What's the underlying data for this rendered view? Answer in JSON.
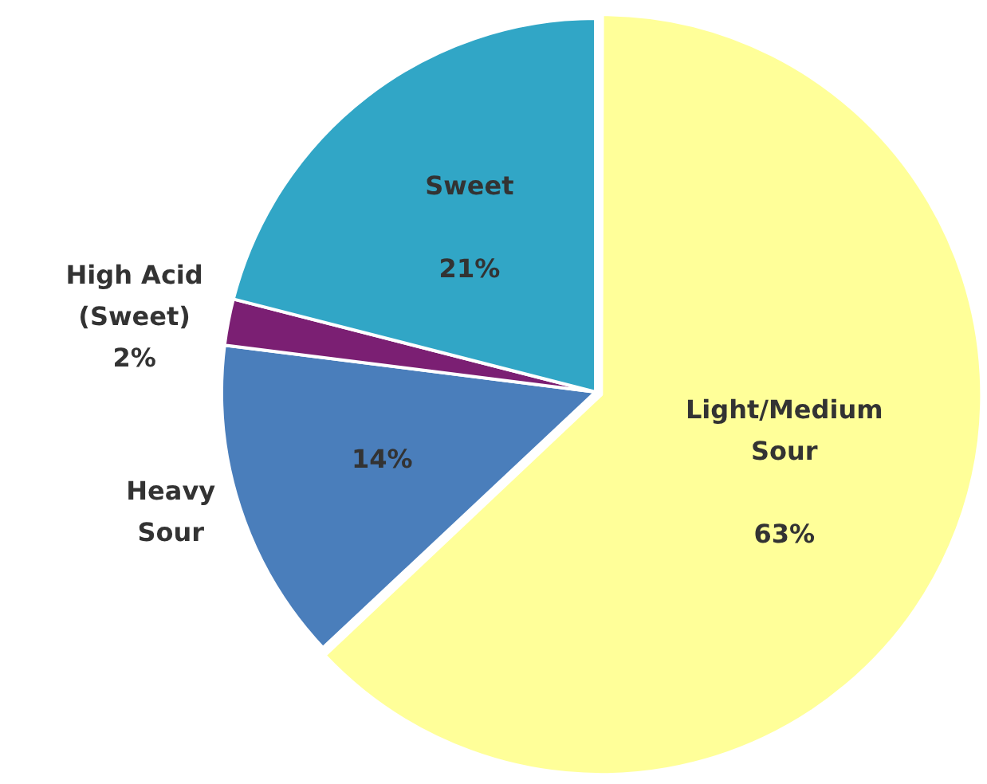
{
  "chart_data": {
    "type": "pie",
    "categories": [
      "Light/Medium Sour",
      "Heavy Sour",
      "High Acid (Sweet)",
      "Sweet"
    ],
    "values": [
      63,
      14,
      2,
      21
    ],
    "value_labels": [
      "63%",
      "14%",
      "2%",
      "21%"
    ],
    "colors": [
      "#ffff99",
      "#4a7ebb",
      "#7b1f73",
      "#31a6c6"
    ],
    "legend": false
  }
}
